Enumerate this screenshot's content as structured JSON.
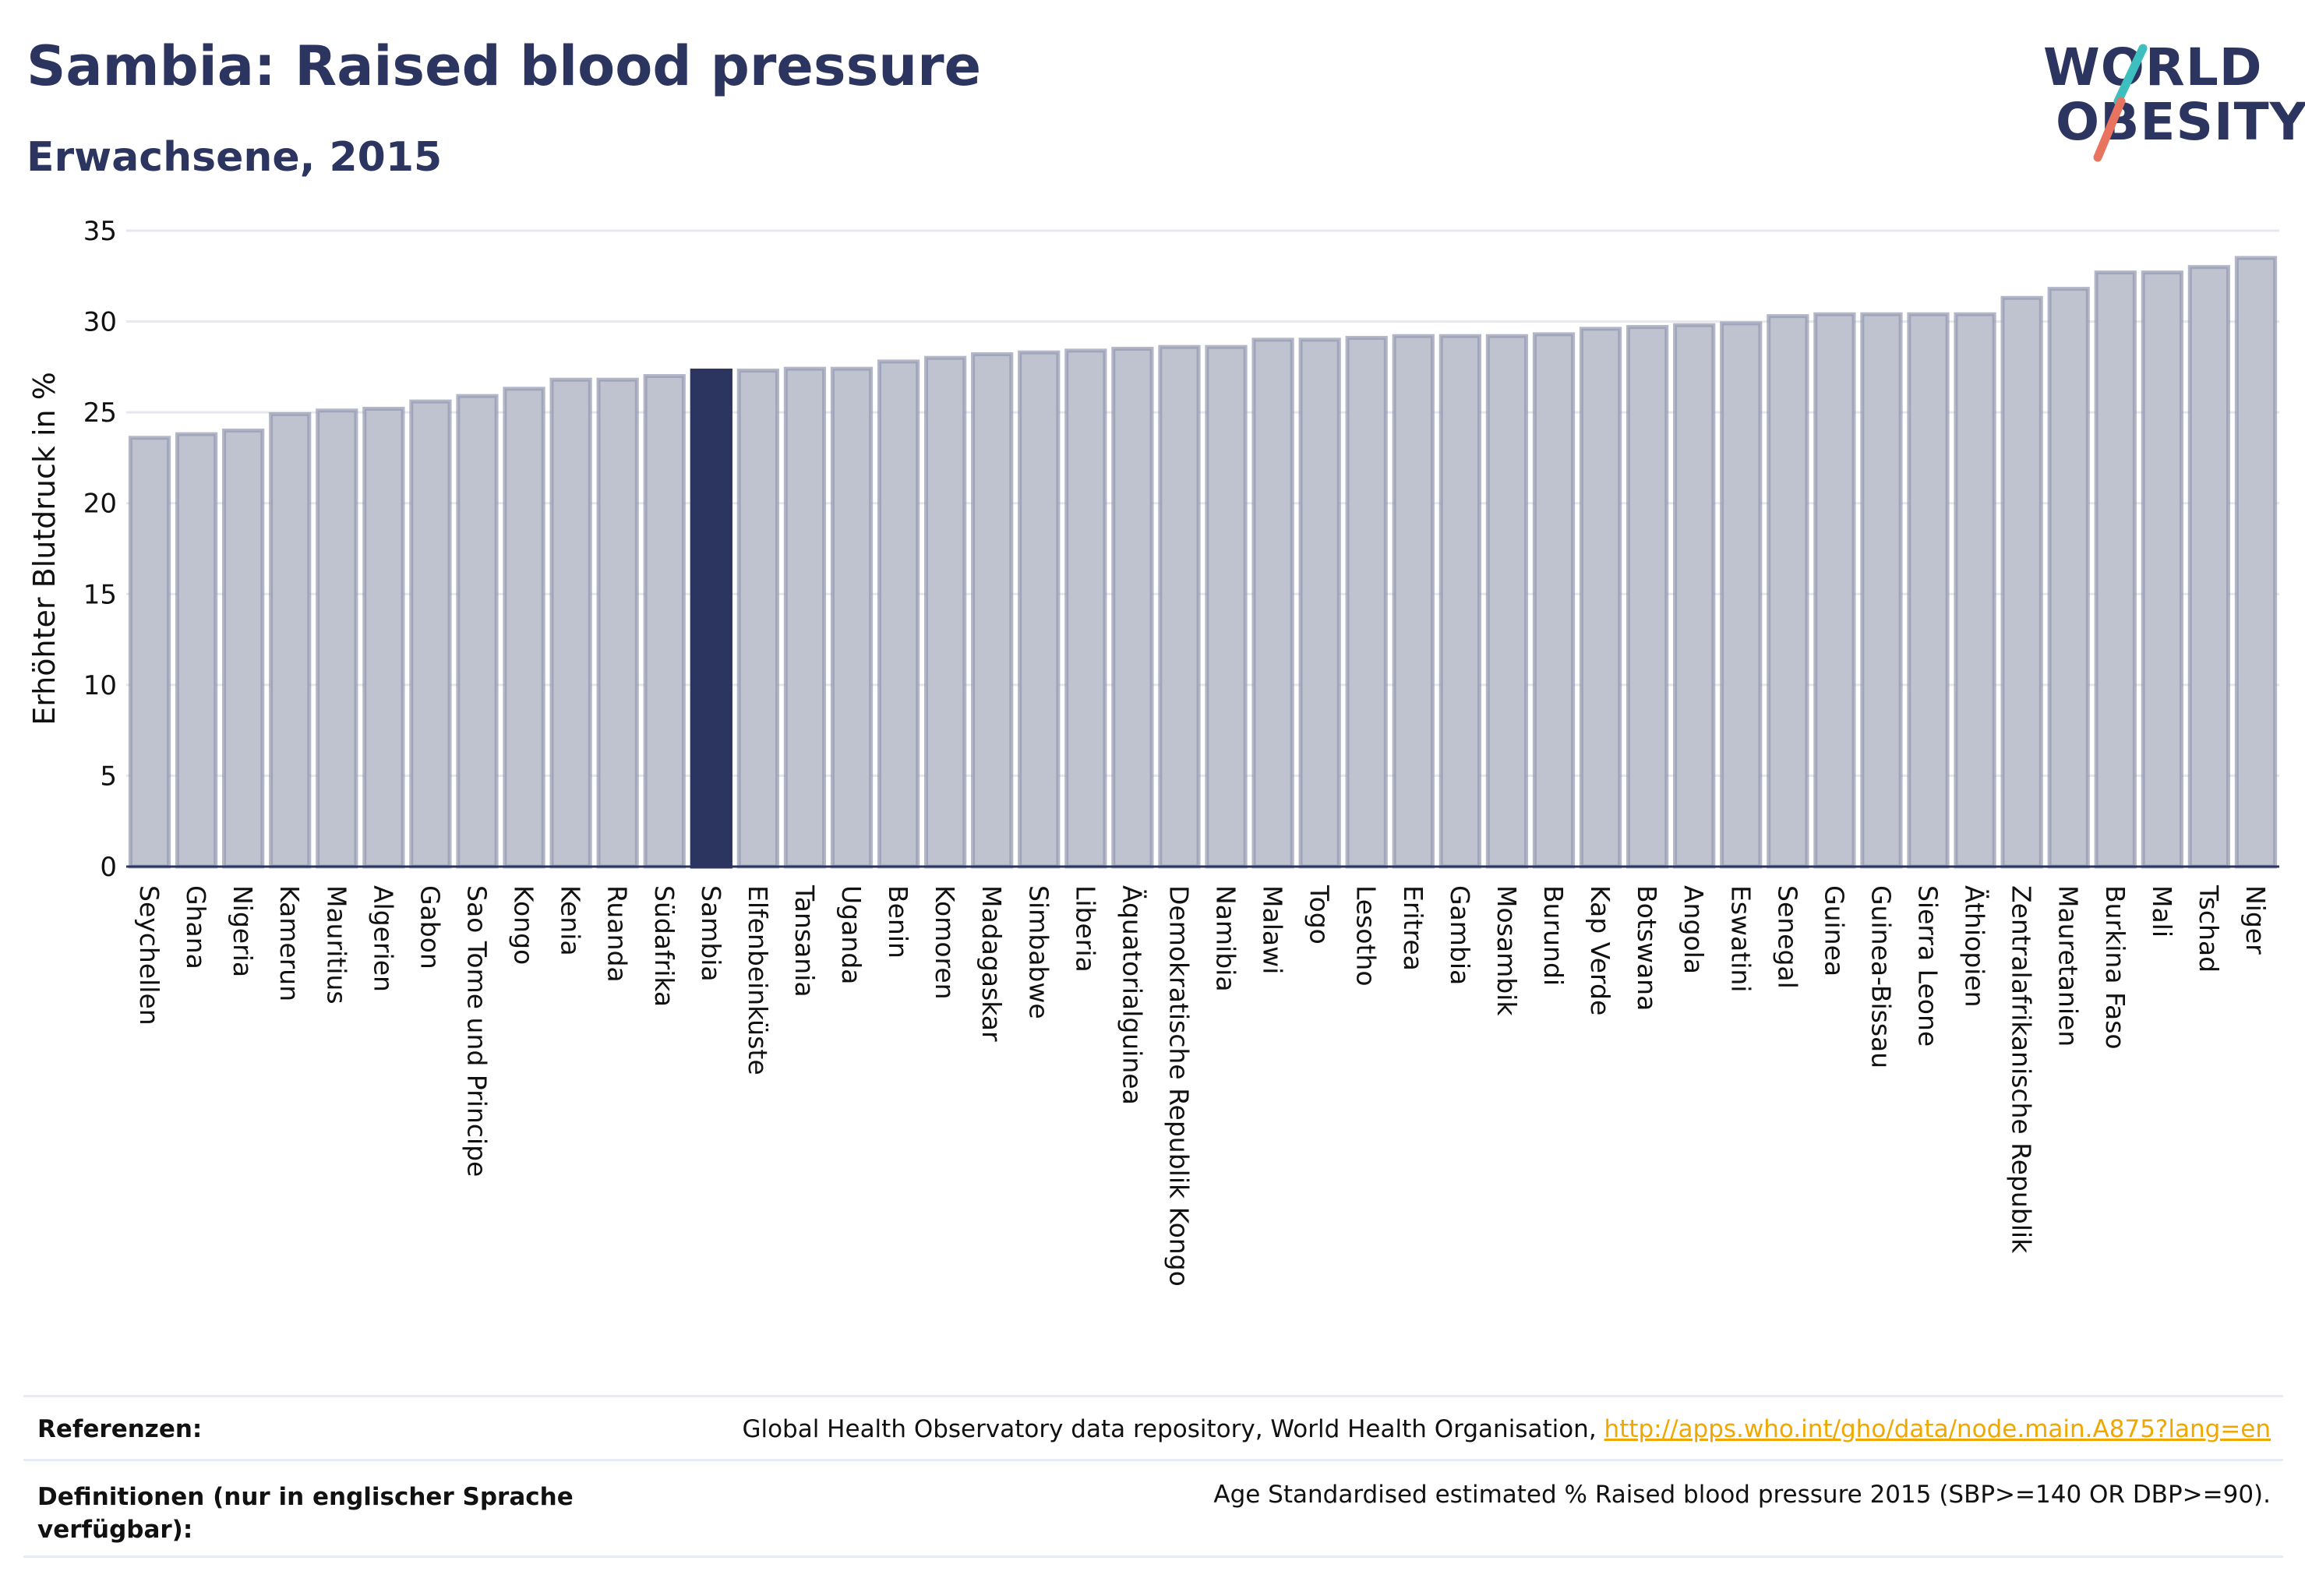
{
  "header": {
    "title": "Sambia: Raised blood pressure",
    "subtitle": "Erwachsene, 2015"
  },
  "logo": {
    "line1": "WORLD",
    "line2": "OBESITY",
    "accent_teal": "#3dbfbf",
    "accent_coral": "#e8735f"
  },
  "colors": {
    "bar_default": "#bfc2cf",
    "bar_stroke": "#9399b0",
    "bar_highlight": "#2c3560",
    "text": "#2c3560",
    "link": "#f0a800"
  },
  "chart_data": {
    "type": "bar",
    "ylabel": "Erhöhter Blutdruck in %",
    "ylim": [
      0,
      35
    ],
    "yticks": [
      0,
      5,
      10,
      15,
      20,
      25,
      30,
      35
    ],
    "grid": true,
    "highlight": "Sambia",
    "categories": [
      "Seychellen",
      "Ghana",
      "Nigeria",
      "Kamerun",
      "Mauritius",
      "Algerien",
      "Gabon",
      "Sao Tome und Principe",
      "Kongo",
      "Kenia",
      "Ruanda",
      "Südafrika",
      "Sambia",
      "Elfenbeinküste",
      "Tansania",
      "Uganda",
      "Benin",
      "Komoren",
      "Madagaskar",
      "Simbabwe",
      "Liberia",
      "Äquatorialguinea",
      "Demokratische Republik Kongo",
      "Namibia",
      "Malawi",
      "Togo",
      "Lesotho",
      "Eritrea",
      "Gambia",
      "Mosambik",
      "Burundi",
      "Kap Verde",
      "Botswana",
      "Angola",
      "Eswatini",
      "Senegal",
      "Guinea",
      "Guinea-Bissau",
      "Sierra Leone",
      "Äthiopien",
      "Zentralafrikanische Republik",
      "Mauretanien",
      "Burkina Faso",
      "Mali",
      "Tschad",
      "Niger"
    ],
    "values": [
      23.6,
      23.8,
      24.0,
      24.9,
      25.1,
      25.2,
      25.6,
      25.9,
      26.3,
      26.8,
      26.8,
      27.0,
      27.3,
      27.3,
      27.4,
      27.4,
      27.8,
      28.0,
      28.2,
      28.3,
      28.4,
      28.5,
      28.6,
      28.6,
      29.0,
      29.0,
      29.1,
      29.2,
      29.2,
      29.2,
      29.3,
      29.6,
      29.7,
      29.8,
      29.9,
      30.3,
      30.4,
      30.4,
      30.4,
      30.4,
      31.3,
      31.8,
      32.7,
      32.7,
      33.0,
      33.5
    ]
  },
  "footer": {
    "references_label": "Referenzen:",
    "references_text": "Global Health Observatory data repository, World Health Organisation, ",
    "references_link": "http://apps.who.int/gho/data/node.main.A875?lang=en",
    "definitions_label": "Definitionen (nur in englischer Sprache verfügbar):",
    "definitions_text": "Age Standardised estimated % Raised blood pressure 2015 (SBP>=140 OR DBP>=90)."
  }
}
